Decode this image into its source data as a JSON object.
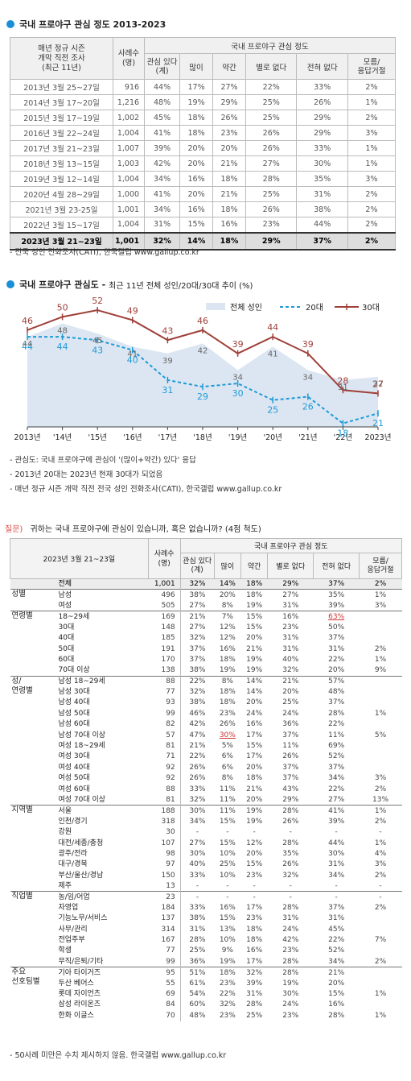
{
  "section1": {
    "title": "국내 프로야구 관심 정도 2013-2023"
  },
  "table1": {
    "head_period": "매년 정규 시즌\n개막 직전 조사\n(최근 11년)",
    "head_n": "사례수\n(명)",
    "head_group": "국내 프로야구 관심 정도",
    "head_interest": "관심 있다",
    "head_interest_sub": "(계)",
    "head_cols": [
      "많이",
      "약간",
      "별로 없다",
      "전혀 없다",
      "모름/\n응답거절"
    ],
    "rows": [
      [
        "2013년 3월 25~27일",
        "916",
        "44%",
        "17%",
        "27%",
        "22%",
        "33%",
        "2%"
      ],
      [
        "2014년 3월 17~20일",
        "1,216",
        "48%",
        "19%",
        "29%",
        "25%",
        "26%",
        "1%"
      ],
      [
        "2015년 3월 17~19일",
        "1,002",
        "45%",
        "18%",
        "26%",
        "25%",
        "29%",
        "2%"
      ],
      [
        "2016년 3월 22~24일",
        "1,004",
        "41%",
        "18%",
        "23%",
        "26%",
        "29%",
        "3%"
      ],
      [
        "2017년 3월 21~23일",
        "1,007",
        "39%",
        "20%",
        "20%",
        "26%",
        "33%",
        "1%"
      ],
      [
        "2018년 3월 13~15일",
        "1,003",
        "42%",
        "20%",
        "21%",
        "27%",
        "30%",
        "1%"
      ],
      [
        "2019년 3월 12~14일",
        "1,004",
        "34%",
        "16%",
        "18%",
        "28%",
        "35%",
        "3%"
      ],
      [
        "2020년 4월 28~29일",
        "1,000",
        "41%",
        "20%",
        "21%",
        "25%",
        "31%",
        "2%"
      ],
      [
        "2021년 3월 23-25일",
        "1,001",
        "34%",
        "16%",
        "18%",
        "26%",
        "38%",
        "2%"
      ],
      [
        "2022년 3월 15~17일",
        "1,004",
        "31%",
        "15%",
        "16%",
        "23%",
        "44%",
        "2%"
      ],
      [
        "2023년 3월 21~23일",
        "1,001",
        "32%",
        "14%",
        "18%",
        "29%",
        "37%",
        "2%"
      ]
    ],
    "note": "- 전국 성인 전화조사(CATI), 한국갤럽 www.gallup.co.kr"
  },
  "section2": {
    "title": "국내 프로야구 관심도 -",
    "subtitle": "최근 11년 전체 성인/20대/30대 추이 (%)"
  },
  "chart_data": {
    "type": "line",
    "categories": [
      "2013년",
      "'14년",
      "'15년",
      "'16년",
      "'17년",
      "'18년",
      "'19년",
      "'20년",
      "'21년",
      "'22년",
      "2023년"
    ],
    "series": [
      {
        "name": "전체 성인",
        "style": "area",
        "color": "#dce6f2",
        "values": [
          44,
          48,
          45,
          41,
          39,
          42,
          34,
          41,
          34,
          31,
          32
        ]
      },
      {
        "name": "20대",
        "style": "dashed",
        "color": "#1e9ad6",
        "values": [
          44,
          44,
          43,
          40,
          31,
          29,
          30,
          25,
          26,
          18,
          21
        ]
      },
      {
        "name": "30대",
        "style": "solid",
        "color": "#a0403a",
        "values": [
          46,
          50,
          52,
          49,
          43,
          46,
          39,
          44,
          39,
          28,
          27
        ]
      }
    ],
    "ylim": [
      0,
      60
    ]
  },
  "chart_notes": [
    "- 관심도: 국내 프로야구에 관심이 '(많이+약간) 있다' 응답",
    "- 2013년 20대는 2023년 현재 30대가 되었음",
    "- 매년 정규 시즌 개막 직전 전국 성인 전화조사(CATI), 한국갤럽 www.gallup.co.kr"
  ],
  "question": {
    "label": "질문)",
    "text": "귀하는 국내 프로야구에 관심이 있습니까, 혹은 없습니까? (4점 척도)"
  },
  "table2": {
    "head_period": "2023년 3월 21~23일",
    "head_n": "사례수\n(명)",
    "head_group": "국내 프로야구 관심 정도",
    "head_interest": "관심 있다",
    "head_interest_sub": "(계)",
    "head_cols": [
      "많이",
      "약간",
      "별로 없다",
      "전혀 없다",
      "모름/\n응답거절"
    ],
    "groups": [
      {
        "name": "",
        "rows": [
          [
            "전체",
            "1,001",
            "32%",
            "14%",
            "18%",
            "29%",
            "37%",
            "2%"
          ]
        ]
      },
      {
        "name": "성별",
        "rows": [
          [
            "남성",
            "496",
            "38%",
            "20%",
            "18%",
            "27%",
            "35%",
            "1%"
          ],
          [
            "여성",
            "505",
            "27%",
            "8%",
            "19%",
            "31%",
            "39%",
            "3%"
          ]
        ]
      },
      {
        "name": "연령별",
        "rows": [
          [
            "18~29세",
            "169",
            "21%",
            "7%",
            "15%",
            "16%",
            "63%",
            ""
          ],
          [
            "30대",
            "148",
            "27%",
            "12%",
            "15%",
            "23%",
            "50%",
            ""
          ],
          [
            "40대",
            "185",
            "32%",
            "12%",
            "20%",
            "31%",
            "37%",
            ""
          ],
          [
            "50대",
            "191",
            "37%",
            "16%",
            "21%",
            "31%",
            "31%",
            "2%"
          ],
          [
            "60대",
            "170",
            "37%",
            "18%",
            "19%",
            "40%",
            "22%",
            "1%"
          ],
          [
            "70대 이상",
            "138",
            "38%",
            "19%",
            "19%",
            "32%",
            "20%",
            "9%"
          ]
        ]
      },
      {
        "name": "성/\n연령별",
        "rows": [
          [
            "남성 18~29세",
            "88",
            "22%",
            "8%",
            "14%",
            "21%",
            "57%",
            ""
          ],
          [
            "남성 30대",
            "77",
            "32%",
            "18%",
            "14%",
            "20%",
            "48%",
            ""
          ],
          [
            "남성 40대",
            "93",
            "38%",
            "18%",
            "20%",
            "25%",
            "37%",
            ""
          ],
          [
            "남성 50대",
            "99",
            "46%",
            "23%",
            "24%",
            "24%",
            "28%",
            "1%"
          ],
          [
            "남성 60대",
            "82",
            "42%",
            "26%",
            "16%",
            "36%",
            "22%",
            ""
          ],
          [
            "남성 70대 이상",
            "57",
            "47%",
            "30%",
            "17%",
            "37%",
            "11%",
            "5%"
          ],
          [
            "여성 18~29세",
            "81",
            "21%",
            "5%",
            "15%",
            "11%",
            "69%",
            ""
          ],
          [
            "여성 30대",
            "71",
            "22%",
            "6%",
            "17%",
            "26%",
            "52%",
            ""
          ],
          [
            "여성 40대",
            "92",
            "26%",
            "6%",
            "20%",
            "37%",
            "37%",
            ""
          ],
          [
            "여성 50대",
            "92",
            "26%",
            "8%",
            "18%",
            "37%",
            "34%",
            "3%"
          ],
          [
            "여성 60대",
            "88",
            "33%",
            "11%",
            "21%",
            "43%",
            "22%",
            "2%"
          ],
          [
            "여성 70대 이상",
            "81",
            "32%",
            "11%",
            "20%",
            "29%",
            "27%",
            "13%"
          ]
        ]
      },
      {
        "name": "지역별",
        "rows": [
          [
            "서울",
            "188",
            "30%",
            "11%",
            "19%",
            "28%",
            "41%",
            "1%"
          ],
          [
            "인천/경기",
            "318",
            "34%",
            "15%",
            "19%",
            "26%",
            "39%",
            "2%"
          ],
          [
            "강원",
            "30",
            "-",
            "-",
            "-",
            "-",
            "-",
            "-"
          ],
          [
            "대전/세종/충청",
            "107",
            "27%",
            "15%",
            "12%",
            "28%",
            "44%",
            "1%"
          ],
          [
            "광주/전라",
            "98",
            "30%",
            "10%",
            "20%",
            "35%",
            "30%",
            "4%"
          ],
          [
            "대구/경북",
            "97",
            "40%",
            "25%",
            "15%",
            "26%",
            "31%",
            "3%"
          ],
          [
            "부산/울산/경남",
            "150",
            "33%",
            "10%",
            "23%",
            "32%",
            "34%",
            "2%"
          ],
          [
            "제주",
            "13",
            "-",
            "-",
            "-",
            "-",
            "-",
            "-"
          ]
        ]
      },
      {
        "name": "직업별",
        "rows": [
          [
            "농/임/어업",
            "23",
            "-",
            "-",
            "-",
            "-",
            "-",
            "-"
          ],
          [
            "자영업",
            "184",
            "33%",
            "16%",
            "17%",
            "28%",
            "37%",
            "2%"
          ],
          [
            "기능노무/서비스",
            "137",
            "38%",
            "15%",
            "23%",
            "31%",
            "31%",
            ""
          ],
          [
            "사무/관리",
            "314",
            "31%",
            "13%",
            "18%",
            "24%",
            "45%",
            ""
          ],
          [
            "전업주부",
            "167",
            "28%",
            "10%",
            "18%",
            "42%",
            "22%",
            "7%"
          ],
          [
            "학생",
            "77",
            "25%",
            "9%",
            "16%",
            "23%",
            "52%",
            ""
          ],
          [
            "무직/은퇴/기타",
            "99",
            "36%",
            "19%",
            "17%",
            "28%",
            "34%",
            "2%"
          ]
        ]
      },
      {
        "name": "주요\n선호팀별",
        "rows": [
          [
            "기아 타이거즈",
            "95",
            "51%",
            "18%",
            "32%",
            "28%",
            "21%",
            ""
          ],
          [
            "두산 베어스",
            "55",
            "61%",
            "23%",
            "39%",
            "19%",
            "20%",
            ""
          ],
          [
            "롯데 자이언츠",
            "69",
            "54%",
            "22%",
            "31%",
            "30%",
            "15%",
            "1%"
          ],
          [
            "삼성 라이온즈",
            "84",
            "60%",
            "32%",
            "28%",
            "24%",
            "16%",
            ""
          ],
          [
            "한화 이글스",
            "70",
            "48%",
            "23%",
            "25%",
            "23%",
            "28%",
            "1%"
          ]
        ]
      }
    ],
    "note": "- 50사례 미만은 수치 제시하지 않음. 한국갤럽 www.gallup.co.kr"
  }
}
